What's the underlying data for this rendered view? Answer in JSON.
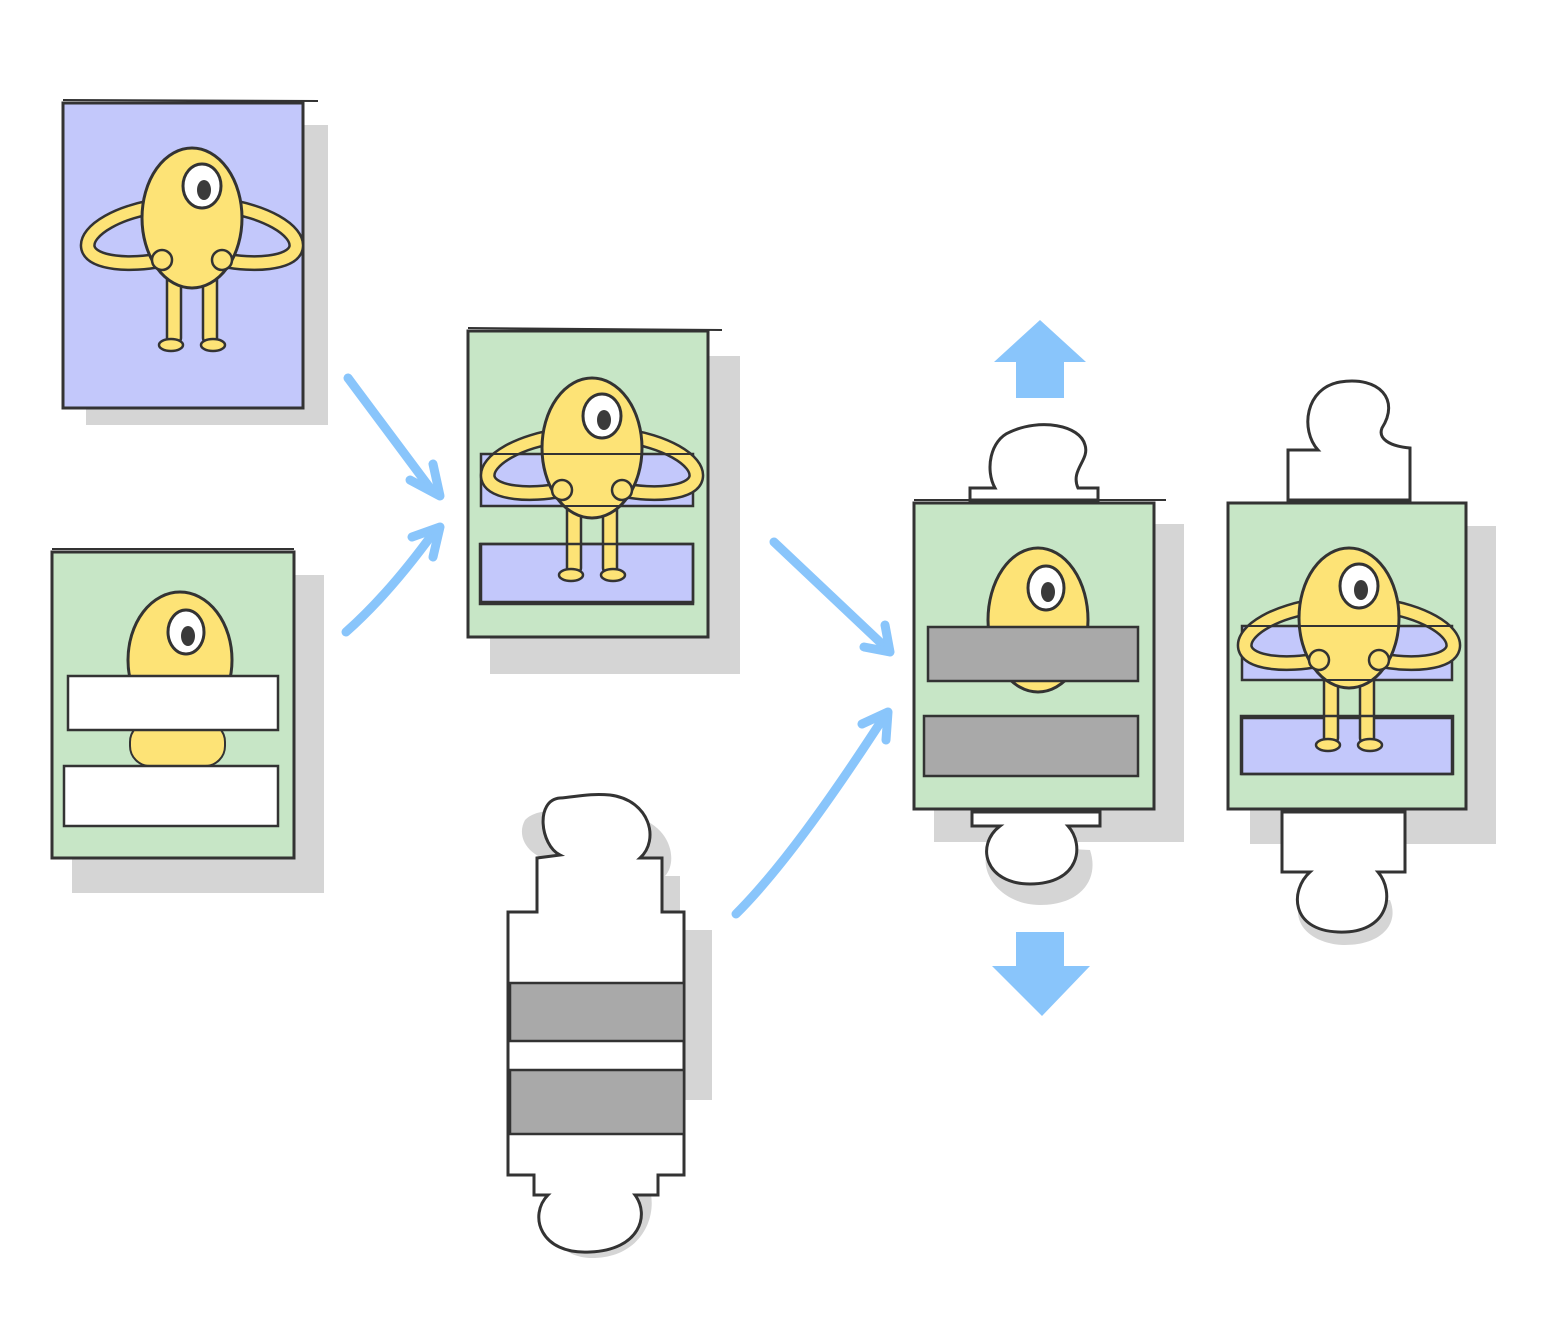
{
  "colors": {
    "purple": "#c3c8fb",
    "green": "#c7e6c6",
    "yellow": "#fde376",
    "gray": "#a9a9a9",
    "arrow": "#89c5fb",
    "ink": "#333333",
    "shadow": "#d5d5d5"
  },
  "scene": [
    {
      "name": "frame-character-purple",
      "kind": "character-card"
    },
    {
      "name": "frame-character-green-white-bars",
      "kind": "masked-card"
    },
    {
      "name": "frame-composite",
      "kind": "composite-card"
    },
    {
      "name": "puzzle-mask-piece",
      "kind": "mask-piece"
    },
    {
      "name": "frame-gray-bars",
      "kind": "gray-bars-card"
    },
    {
      "name": "frame-final-composite",
      "kind": "final-card"
    }
  ],
  "arrows": [
    "arrow-purple-to-composite",
    "arrow-green-to-composite",
    "arrow-composite-to-gray",
    "arrow-piece-to-gray",
    "up-arrow-icon",
    "down-arrow-icon"
  ]
}
